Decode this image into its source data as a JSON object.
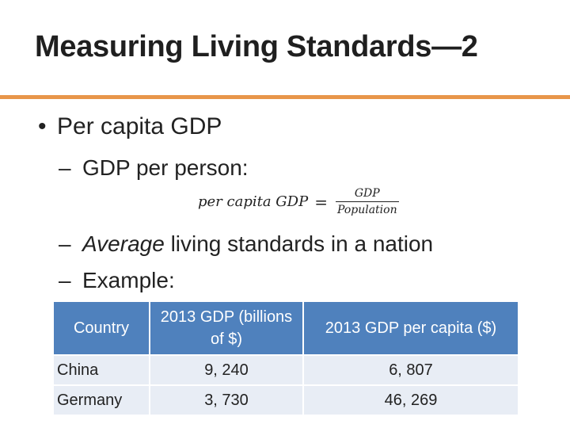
{
  "slide": {
    "title": "Measuring Living Standards—2"
  },
  "bullets": {
    "main": {
      "marker": "•",
      "text": "Per capita GDP"
    },
    "sub_marker": "–",
    "gdp_per_person": "GDP per person:",
    "average_italic": "Average",
    "average_rest": " living standards in a nation",
    "example": "Example:"
  },
  "formula": {
    "lhs": "per capita GDP",
    "equals": "=",
    "numerator": "GDP",
    "denominator": "Population"
  },
  "table": {
    "headers": [
      "Country",
      "2013 GDP (billions of $)",
      "2013 GDP per capita ($)"
    ],
    "rows": [
      {
        "country": "China",
        "gdp": "9, 240",
        "per_capita": "6, 807"
      },
      {
        "country": "Germany",
        "gdp": "3, 730",
        "per_capita": "46, 269"
      }
    ]
  },
  "colors": {
    "accent_rule": "#e8964a",
    "header_fill": "#4f81bd",
    "row_fill": "#e8edf5"
  }
}
